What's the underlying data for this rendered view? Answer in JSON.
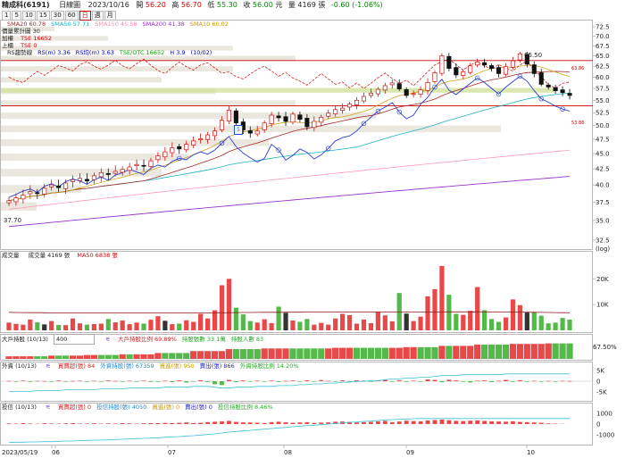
{
  "header": {
    "stock": "精成科(6191)",
    "period": "日線圖",
    "date": "2023/10/16",
    "open_label": "開",
    "open": "56.20",
    "high_label": "高",
    "high": "56.70",
    "low_label": "低",
    "low": "55.30",
    "close_label": "收",
    "close": "56.00",
    "unit": "元",
    "vol_label": "量",
    "volume": "4169",
    "vol_unit": "張",
    "change": "-0.60 (-1.06%)"
  },
  "toolbar": {
    "buttons": [
      "1",
      "5",
      "10",
      "15",
      "30",
      "60",
      "日",
      "週",
      "月"
    ],
    "selected": "日"
  },
  "price_panel": {
    "sma_line": [
      {
        "text": "SMA20 60.78",
        "color": "#a52a2a"
      },
      {
        "text": "SMA50 57.71",
        "color": "#20b0c0"
      },
      {
        "text": "SMA150 45.58",
        "color": "#ff88aa"
      },
      {
        "text": "SMA200 41.38",
        "color": "#9933cc"
      },
      {
        "text": "SMA10 60.02",
        "color": "#cc9900"
      }
    ],
    "price_volume_label": "價量累計圖 30",
    "add_label": "加權",
    "twse": "TSE 16652",
    "up_label": "上櫃",
    "otc": "TSE 0",
    "rs_line": [
      {
        "text": "RS趨勢線",
        "color": "#222222"
      },
      {
        "text": "RS(m) 3.36",
        "color": "#0000cc"
      },
      {
        "text": "RS均(m) 3.63",
        "color": "#0000cc"
      },
      {
        "text": "TSE/OTC 16652",
        "color": "#00aa00"
      },
      {
        "text": "H 3.9",
        "color": "#0000cc"
      },
      {
        "text": "(10/02)",
        "color": "#0000cc"
      }
    ],
    "high_marker": "65.50",
    "low_marker": "37.70",
    "line_value_top": "63.86",
    "line_value_bottom": "53.88",
    "flag_badge": "5",
    "axis_unit": "(log)"
  },
  "volume_panel": {
    "label": "成交量",
    "vol_text": "成交量 4169 張",
    "ma_text": "MA50 6838 張"
  },
  "major_panel": {
    "label": "大戶持股 (10/13)",
    "select_value": "400",
    "fields": [
      {
        "text": "大戶持股比例 69.89%",
        "color": "#cc2222"
      },
      {
        "text": "持股張數 33.1萬",
        "color": "#22aa22"
      },
      {
        "text": "持股人數 83",
        "color": "#22aa22"
      }
    ],
    "right_value": "67.50%"
  },
  "foreign_panel": {
    "label": "外資 (10/13)",
    "fields": [
      {
        "text": "買賣超(張) 84",
        "color": "#cc2222"
      },
      {
        "text": "外資持股(張) 67359",
        "color": "#2288cc"
      },
      {
        "text": "買進(張) 950",
        "color": "#cc9900"
      },
      {
        "text": "賣出(張) 866",
        "color": "#2222cc"
      },
      {
        "text": "外資持股比例 14.20%",
        "color": "#22aa22"
      }
    ]
  },
  "trust_panel": {
    "label": "投信 (10/13)",
    "fields": [
      {
        "text": "買賣超(張) 0",
        "color": "#cc2222"
      },
      {
        "text": "投信持股(張) 4050",
        "color": "#2288cc"
      },
      {
        "text": "買進(張) 0",
        "color": "#cc9900"
      },
      {
        "text": "賣出(張) 0",
        "color": "#2222cc"
      },
      {
        "text": "投信持股比例 8.46%",
        "color": "#22aa22"
      }
    ]
  },
  "x_axis": {
    "labels": [
      "2023/05/19",
      "06",
      "07",
      "08",
      "09",
      "10"
    ]
  },
  "chart_data": {
    "type": "candlestick",
    "y_axis_scale": "log",
    "price_ticks": [
      "72.5",
      "70.0",
      "67.5",
      "65.0",
      "62.5",
      "60.0",
      "57.5",
      "55.0",
      "52.5",
      "50.0",
      "47.5",
      "45.0",
      "42.5",
      "40.0",
      "37.5",
      "35.0",
      "32.5"
    ],
    "volume_ticks": [
      "20K",
      "10K"
    ],
    "foreign_ticks": [
      "5K",
      "0",
      "-5K"
    ],
    "trust_ticks": [
      "1000",
      "0",
      "-1000"
    ],
    "ylim": [
      32.5,
      72.5
    ],
    "price_lines": [
      63.86,
      53.88
    ],
    "close": [
      37.7,
      38.1,
      38.5,
      39.0,
      38.8,
      39.5,
      40.0,
      39.6,
      40.3,
      40.8,
      41.0,
      40.6,
      41.4,
      41.9,
      41.6,
      42.1,
      42.4,
      42.8,
      43.2,
      43.0,
      43.8,
      44.6,
      45.3,
      46.0,
      45.8,
      46.6,
      47.2,
      47.6,
      48.3,
      49.0,
      51.0,
      53.0,
      50.5,
      49.2,
      48.6,
      49.0,
      50.5,
      52.0,
      51.5,
      50.8,
      52.2,
      51.2,
      49.8,
      50.8,
      51.6,
      52.4,
      53.1,
      53.4,
      54.2,
      55.0,
      55.8,
      56.5,
      57.3,
      58.1,
      58.7,
      57.4,
      56.0,
      56.4,
      57.2,
      58.8,
      61.0,
      65.0,
      62.0,
      60.5,
      61.2,
      62.6,
      63.5,
      62.8,
      62.0,
      60.8,
      62.4,
      63.8,
      65.5,
      63.0,
      60.8,
      58.4,
      57.8,
      57.0,
      56.6,
      56.0
    ],
    "volume": [
      3000,
      2500,
      2200,
      4200,
      3100,
      2300,
      3600,
      2100,
      2000,
      4600,
      2700,
      2200,
      2400,
      2600,
      4400,
      3100,
      3800,
      2400,
      3000,
      2600,
      4100,
      5500,
      3700,
      2400,
      2600,
      3900,
      3300,
      6400,
      4600,
      7800,
      17500,
      20000,
      8800,
      6200,
      3600,
      3000,
      4300,
      2800,
      9200,
      6800,
      3800,
      3300,
      4400,
      2200,
      2900,
      2200,
      4600,
      6400,
      5900,
      2600,
      4200,
      2800,
      7200,
      5800,
      3500,
      14500,
      6500,
      3600,
      5300,
      13200,
      16000,
      25000,
      13800,
      6400,
      6000,
      7600,
      16800,
      7800,
      4400,
      3300,
      5000,
      12000,
      9800,
      6900,
      7100,
      5700,
      2700,
      3000,
      4800,
      4169
    ],
    "volume_ma": [
      7000,
      6950,
      6900,
      6880,
      6850,
      6830,
      6800,
      6800,
      6780,
      6760,
      6750,
      6750,
      6740,
      6740,
      6730,
      6730,
      6720,
      6720,
      6720,
      6710,
      6710,
      6720,
      6720,
      6730,
      6730,
      6740,
      6750,
      6760,
      6780,
      6800,
      6830,
      6870,
      6900,
      6930,
      6950,
      6970,
      6990,
      7000,
      7020,
      7030,
      7040,
      7050,
      7060,
      7060,
      7060,
      7060,
      7070,
      7070,
      7080,
      7080,
      7080,
      7080,
      7090,
      7090,
      7090,
      7100,
      7100,
      7100,
      7110,
      7120,
      7130,
      7150,
      7160,
      7160,
      7160,
      7160,
      7170,
      7160,
      7150,
      7130,
      7110,
      7090,
      7060,
      7030,
      7000,
      6970,
      6930,
      6900,
      6870,
      6838
    ],
    "major_holders_pct": [
      60.0,
      60.0,
      60.0,
      60.0,
      60.0,
      60.0,
      60.5,
      60.5,
      60.5,
      60.5,
      60.5,
      61.0,
      61.0,
      61.0,
      61.0,
      61.0,
      61.5,
      61.5,
      61.5,
      61.5,
      61.5,
      62.5,
      62.5,
      62.5,
      62.5,
      62.5,
      64.0,
      64.0,
      64.0,
      64.0,
      64.0,
      65.5,
      65.5,
      65.5,
      65.5,
      65.5,
      66.0,
      66.0,
      66.0,
      66.0,
      66.0,
      66.0,
      66.0,
      66.0,
      66.0,
      66.0,
      66.5,
      66.5,
      66.5,
      66.5,
      66.5,
      66.5,
      66.5,
      66.5,
      66.5,
      66.5,
      67.0,
      67.0,
      67.0,
      67.0,
      67.0,
      68.0,
      68.0,
      68.0,
      68.0,
      68.0,
      69.0,
      69.0,
      69.0,
      69.0,
      69.0,
      69.5,
      69.5,
      69.5,
      69.5,
      69.5,
      69.89,
      69.89,
      69.89,
      69.89
    ],
    "foreign_net": [
      120,
      -180,
      250,
      -300,
      150,
      90,
      -220,
      310,
      -150,
      80,
      220,
      -120,
      180,
      -260,
      340,
      120,
      -80,
      200,
      -140,
      260,
      -320,
      -180,
      210,
      -420,
      380,
      -600,
      -250,
      420,
      -380,
      -1400,
      -1800,
      600,
      -400,
      350,
      -220,
      180,
      -120,
      260,
      -350,
      140,
      300,
      -260,
      420,
      -180,
      520,
      160,
      -240,
      380,
      -300,
      440,
      250,
      -160,
      340,
      620,
      -280,
      480,
      -320,
      200,
      -150,
      820,
      600,
      -450,
      700,
      380,
      -300,
      -560,
      250,
      340,
      -420,
      160,
      620,
      -300,
      480,
      -260,
      180,
      -180,
      120,
      -140,
      160,
      84
    ],
    "foreign_holding_pct": [
      12.1,
      12.1,
      12.1,
      12.1,
      12.2,
      12.2,
      12.2,
      12.2,
      12.3,
      12.3,
      12.3,
      12.3,
      12.3,
      12.4,
      12.4,
      12.4,
      12.4,
      12.5,
      12.5,
      12.5,
      12.5,
      12.5,
      12.6,
      12.6,
      12.6,
      12.6,
      12.7,
      12.7,
      12.7,
      12.6,
      12.5,
      12.5,
      12.6,
      12.6,
      12.6,
      12.7,
      12.7,
      12.7,
      12.8,
      12.8,
      12.8,
      12.9,
      12.9,
      13.0,
      13.0,
      13.1,
      13.1,
      13.2,
      13.2,
      13.3,
      13.3,
      13.4,
      13.4,
      13.5,
      13.6,
      13.6,
      13.7,
      13.7,
      13.8,
      13.8,
      13.9,
      14.0,
      14.0,
      14.0,
      14.1,
      14.1,
      14.1,
      14.1,
      14.1,
      14.1,
      14.2,
      14.2,
      14.2,
      14.2,
      14.2,
      14.2,
      14.2,
      14.2,
      14.2,
      14.2
    ],
    "trust_net": [
      60,
      40,
      80,
      50,
      30,
      70,
      50,
      40,
      60,
      80,
      40,
      50,
      70,
      40,
      60,
      50,
      80,
      60,
      40,
      70,
      90,
      80,
      110,
      90,
      120,
      150,
      100,
      120,
      180,
      220,
      260,
      300,
      200,
      160,
      150,
      120,
      100,
      180,
      220,
      160,
      120,
      150,
      180,
      100,
      140,
      160,
      220,
      240,
      200,
      150,
      180,
      210,
      260,
      300,
      180,
      240,
      320,
      280,
      260,
      340,
      380,
      420,
      360,
      300,
      280,
      320,
      350,
      300,
      260,
      240,
      220,
      260,
      200,
      180,
      150,
      120,
      60,
      40,
      20,
      0
    ],
    "trust_holding_pct": [
      0.4,
      0.5,
      0.5,
      0.6,
      0.6,
      0.7,
      0.7,
      0.8,
      0.9,
      0.9,
      1.0,
      1.1,
      1.2,
      1.2,
      1.3,
      1.4,
      1.5,
      1.6,
      1.7,
      1.8,
      1.9,
      2.0,
      2.2,
      2.3,
      2.4,
      2.6,
      2.7,
      2.9,
      3.1,
      3.3,
      3.6,
      3.9,
      4.1,
      4.3,
      4.5,
      4.7,
      4.9,
      5.1,
      5.3,
      5.5,
      5.7,
      5.9,
      6.1,
      6.2,
      6.4,
      6.6,
      6.8,
      7.0,
      7.2,
      7.3,
      7.5,
      7.6,
      7.8,
      8.0,
      8.1,
      8.2,
      8.3,
      8.4,
      8.45,
      8.46,
      8.46,
      8.46,
      8.46,
      8.46,
      8.46,
      8.46,
      8.46,
      8.46,
      8.46,
      8.46,
      8.46,
      8.46,
      8.46,
      8.46,
      8.46,
      8.46,
      8.46,
      8.46,
      8.46,
      8.46
    ]
  }
}
